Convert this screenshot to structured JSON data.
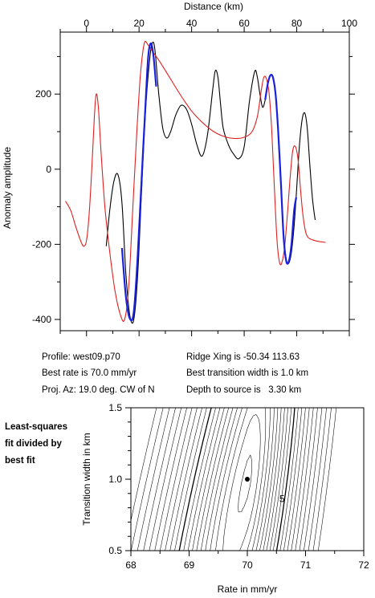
{
  "chart_data": [
    {
      "type": "line",
      "xlabel": "Distance (km)",
      "ylabel": "Anomaly amplitude",
      "xlim": [
        -10,
        100
      ],
      "ylim": [
        -430,
        365
      ],
      "x_ticks": [
        0,
        20,
        40,
        60,
        80,
        100
      ],
      "y_ticks": [
        -400,
        -200,
        0,
        200
      ],
      "series": [
        {
          "color": "#000000",
          "points": [
            [
              7.5,
              -205
            ],
            [
              9,
              -100
            ],
            [
              10.5,
              -30
            ],
            [
              12,
              -15
            ],
            [
              13.5,
              -90
            ],
            [
              15,
              -280
            ],
            [
              16.5,
              -390
            ],
            [
              18,
              -400
            ],
            [
              19.5,
              -280
            ],
            [
              21,
              -50
            ],
            [
              22.5,
              160
            ],
            [
              24,
              290
            ],
            [
              25,
              335
            ],
            [
              26,
              320
            ],
            [
              27.5,
              200
            ],
            [
              29,
              110
            ],
            [
              30.5,
              83
            ],
            [
              32,
              100
            ],
            [
              34,
              145
            ],
            [
              36,
              170
            ],
            [
              38,
              160
            ],
            [
              40,
              120
            ],
            [
              42,
              65
            ],
            [
              44,
              35
            ],
            [
              46,
              90
            ],
            [
              48,
              210
            ],
            [
              49,
              262
            ],
            [
              50,
              245
            ],
            [
              51,
              175
            ],
            [
              52,
              110
            ],
            [
              54,
              65
            ],
            [
              56,
              40
            ],
            [
              58,
              28
            ],
            [
              60,
              60
            ],
            [
              62,
              180
            ],
            [
              64,
              260
            ],
            [
              65,
              245
            ],
            [
              66,
              200
            ],
            [
              67,
              165
            ],
            [
              68,
              185
            ],
            [
              69,
              225
            ],
            [
              70,
              250
            ],
            [
              71,
              245
            ],
            [
              72,
              200
            ],
            [
              73,
              100
            ],
            [
              74,
              -30
            ],
            [
              75,
              -170
            ],
            [
              76,
              -240
            ],
            [
              77,
              -250
            ],
            [
              78,
              -220
            ],
            [
              79,
              -150
            ],
            [
              80,
              -50
            ],
            [
              81,
              60
            ],
            [
              82,
              130
            ],
            [
              83,
              150
            ],
            [
              84,
              110
            ],
            [
              85,
              10
            ],
            [
              86,
              -80
            ],
            [
              87,
              -135
            ]
          ]
        },
        {
          "color": "#e02020",
          "points": [
            [
              -8,
              -85
            ],
            [
              -6,
              -110
            ],
            [
              -4,
              -155
            ],
            [
              -2,
              -195
            ],
            [
              -1,
              -205
            ],
            [
              0,
              -190
            ],
            [
              1,
              -120
            ],
            [
              2,
              0
            ],
            [
              3,
              140
            ],
            [
              3.7,
              200
            ],
            [
              4.5,
              165
            ],
            [
              5.5,
              50
            ],
            [
              7,
              -100
            ],
            [
              9,
              -230
            ],
            [
              11,
              -330
            ],
            [
              13,
              -390
            ],
            [
              14.5,
              -400
            ],
            [
              16,
              -320
            ],
            [
              17.5,
              -120
            ],
            [
              19,
              80
            ],
            [
              20.5,
              250
            ],
            [
              22,
              335
            ],
            [
              23.5,
              330
            ],
            [
              25,
              315
            ],
            [
              28,
              285
            ],
            [
              32,
              240
            ],
            [
              36,
              195
            ],
            [
              40,
              155
            ],
            [
              44,
              125
            ],
            [
              48,
              102
            ],
            [
              52,
              88
            ],
            [
              56,
              82
            ],
            [
              60,
              85
            ],
            [
              63,
              100
            ],
            [
              65,
              140
            ],
            [
              66.5,
              210
            ],
            [
              67.5,
              245
            ],
            [
              68.5,
              240
            ],
            [
              69.5,
              200
            ],
            [
              70.5,
              100
            ],
            [
              71.5,
              -50
            ],
            [
              72.5,
              -190
            ],
            [
              73.5,
              -250
            ],
            [
              74.5,
              -245
            ],
            [
              75.5,
              -200
            ],
            [
              76.5,
              -115
            ],
            [
              77.5,
              -20
            ],
            [
              78.5,
              50
            ],
            [
              79.5,
              60
            ],
            [
              80.5,
              25
            ],
            [
              81.5,
              -60
            ],
            [
              82.5,
              -130
            ],
            [
              83.5,
              -170
            ],
            [
              84.5,
              -183
            ],
            [
              86,
              -188
            ],
            [
              88,
              -192
            ],
            [
              91,
              -195
            ]
          ]
        },
        {
          "color": "#1a20e0",
          "points": [
            [
              13.5,
              -210
            ],
            [
              15,
              -340
            ],
            [
              16.5,
              -398
            ],
            [
              18,
              -380
            ],
            [
              19.5,
              -230
            ],
            [
              21,
              -20
            ],
            [
              22.5,
              180
            ],
            [
              23.5,
              300
            ],
            [
              24.5,
              335
            ],
            [
              25.5,
              300
            ],
            [
              26.5,
              220
            ],
            [
              68,
              185
            ],
            [
              69,
              228
            ],
            [
              70,
              250
            ],
            [
              71,
              243
            ],
            [
              72,
              195
            ],
            [
              73,
              95
            ],
            [
              74,
              -40
            ],
            [
              75,
              -180
            ],
            [
              76,
              -245
            ],
            [
              77,
              -245
            ],
            [
              78,
              -200
            ],
            [
              79,
              -110
            ],
            [
              79.8,
              -75
            ]
          ]
        }
      ]
    },
    {
      "type": "contour",
      "xlabel": "Rate in mm/yr",
      "ylabel": "Transition width in km",
      "xlim": [
        68,
        72
      ],
      "ylim": [
        0.5,
        1.5
      ],
      "x_ticks": [
        "68",
        "69",
        "70",
        "71",
        "72"
      ],
      "y_ticks": [
        "0.5",
        "1.0",
        "1.5"
      ],
      "best_fit_point": [
        70.0,
        1.0
      ],
      "contour_label": "5"
    }
  ],
  "info": {
    "profile": "Profile: west09.p70",
    "best_rate": "Best rate is 70.0 mm/yr",
    "proj_az": "Proj. Az: 19.0 deg. CW of N",
    "ridge_xing": "Ridge Xing is -50.34 113.63",
    "best_width": "Best transition width is 1.0 km",
    "depth": "Depth to source is   3.30 km"
  },
  "side_label": [
    "Least-squares",
    "fit divided by",
    "best fit"
  ]
}
